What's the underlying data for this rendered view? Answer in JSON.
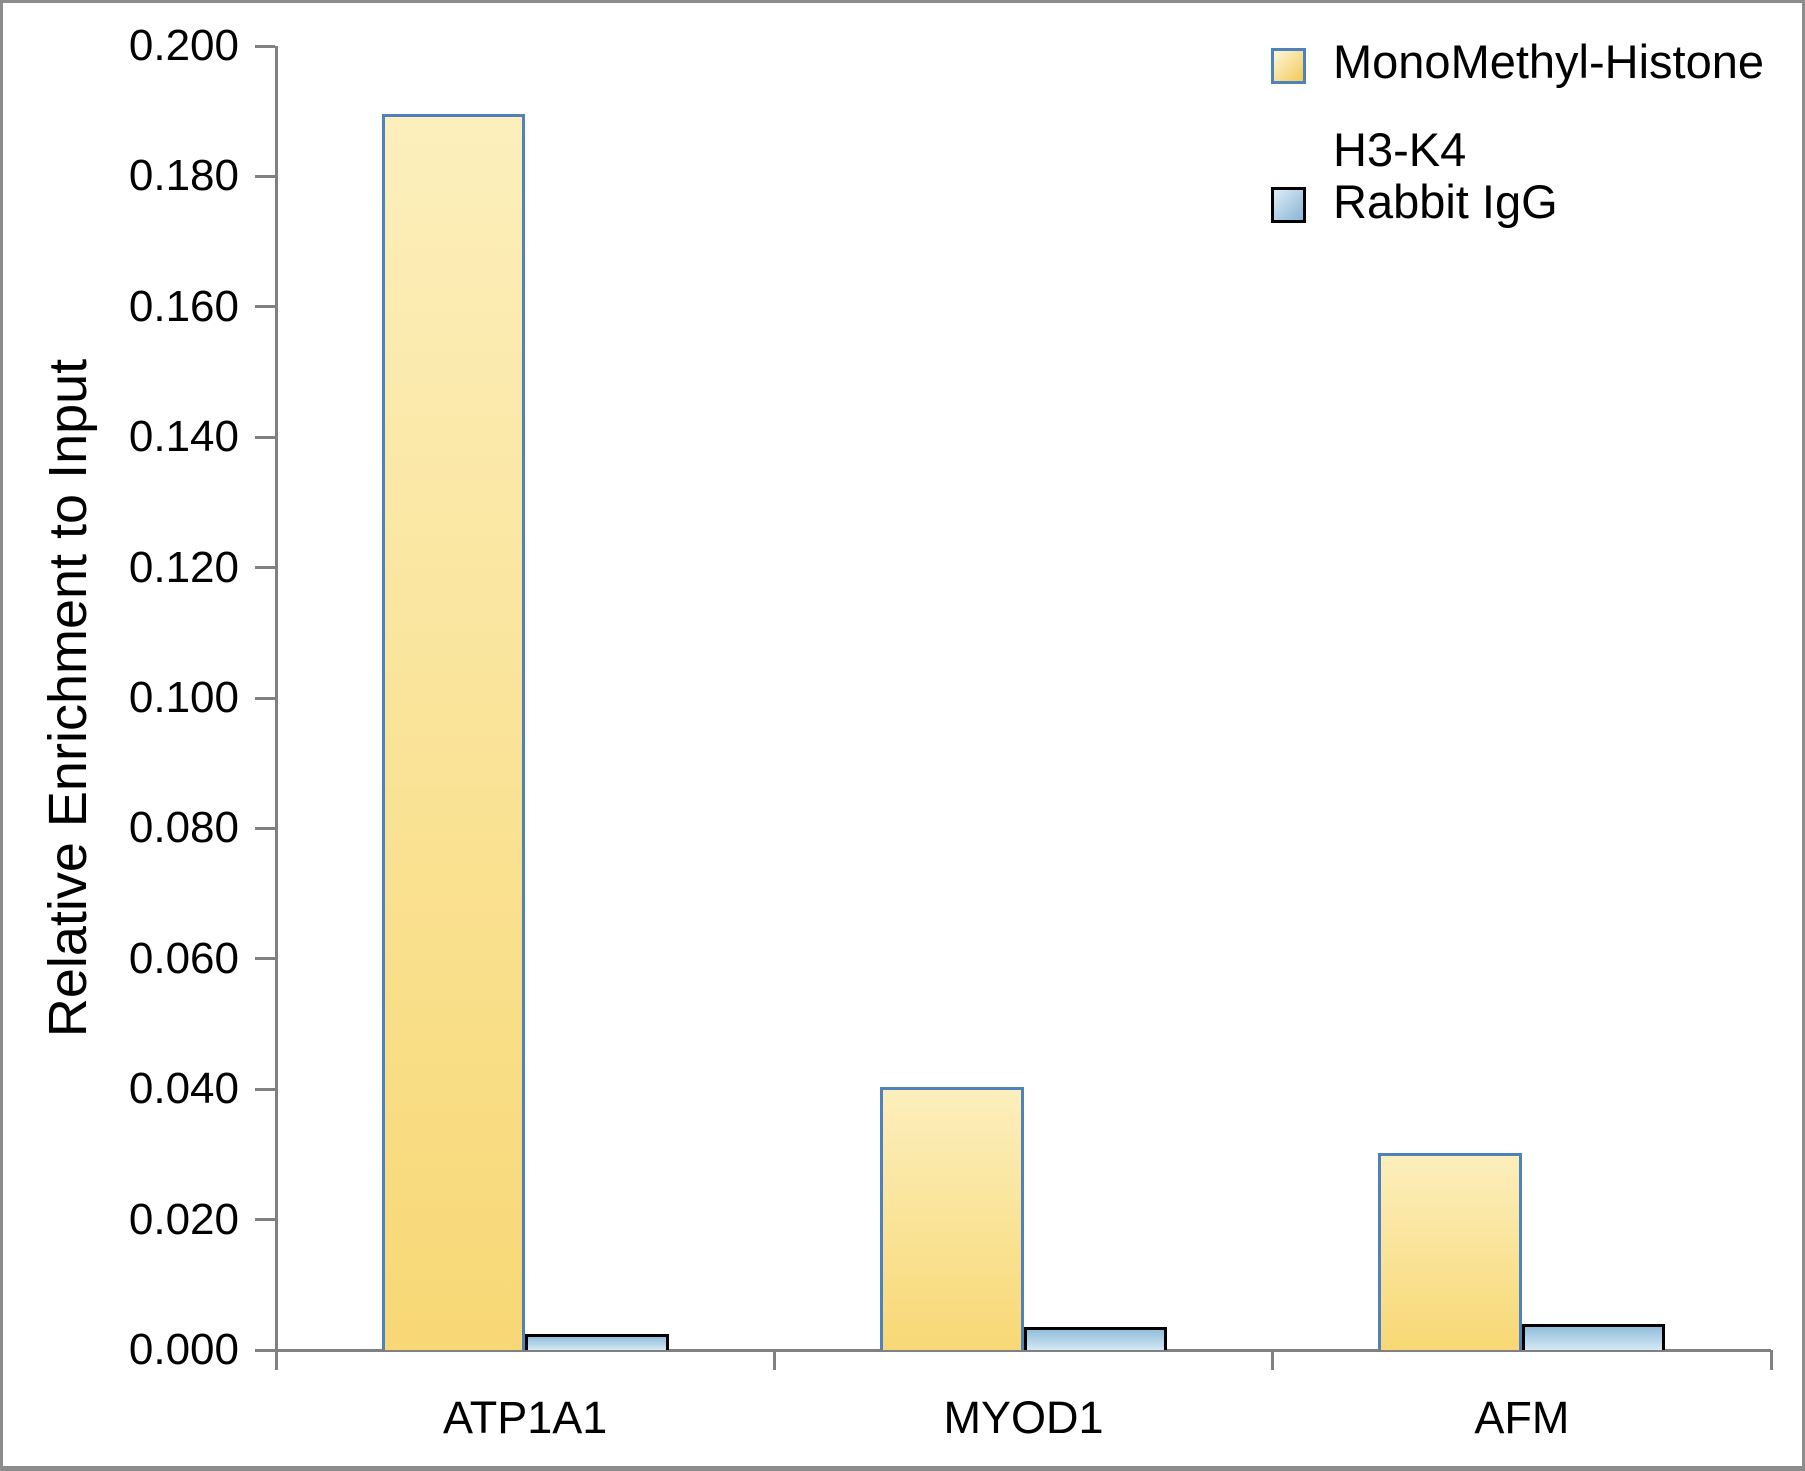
{
  "chart_data": {
    "type": "bar",
    "title": "",
    "xlabel": "",
    "ylabel": "Relative Enrichment to Input",
    "categories": [
      "ATP1A1",
      "MYOD1",
      "AFM"
    ],
    "series": [
      {
        "name": "MonoMethyl-Histone H3-K4",
        "values": [
          0.1895,
          0.0403,
          0.0302
        ]
      },
      {
        "name": "Rabbit IgG",
        "values": [
          0.0025,
          0.0035,
          0.004
        ]
      }
    ],
    "y_axis": {
      "min": 0.0,
      "max": 0.2,
      "step": 0.02,
      "tick_labels": [
        "0.000",
        "0.020",
        "0.040",
        "0.060",
        "0.080",
        "0.100",
        "0.120",
        "0.140",
        "0.160",
        "0.180",
        "0.200"
      ]
    },
    "x_axis": {
      "tick_marks": "category-boundaries"
    },
    "grid": false,
    "legend": {
      "position": "top-right",
      "items": [
        {
          "lines": [
            "MonoMethyl-Histone",
            "H3-K4"
          ]
        },
        {
          "lines": [
            "Rabbit IgG"
          ]
        }
      ]
    },
    "styles": {
      "series_fills": [
        {
          "top": "#FCEFBC",
          "bottom": "#F8D875",
          "border": "#4F81BD"
        },
        {
          "top": "#92BEDA",
          "bottom": "#D4E8F4",
          "border": "#000000"
        }
      ],
      "legend_swatch_fills": [
        {
          "from": "#FDF6DC",
          "to": "#F2CA55",
          "border": "#4F81BD"
        },
        {
          "from": "#DCEDF8",
          "to": "#8AB4D4",
          "border": "#000000"
        }
      ],
      "axis_color": "#808080",
      "frame_color": "#8C8C8C",
      "text_color": "#000000"
    }
  }
}
